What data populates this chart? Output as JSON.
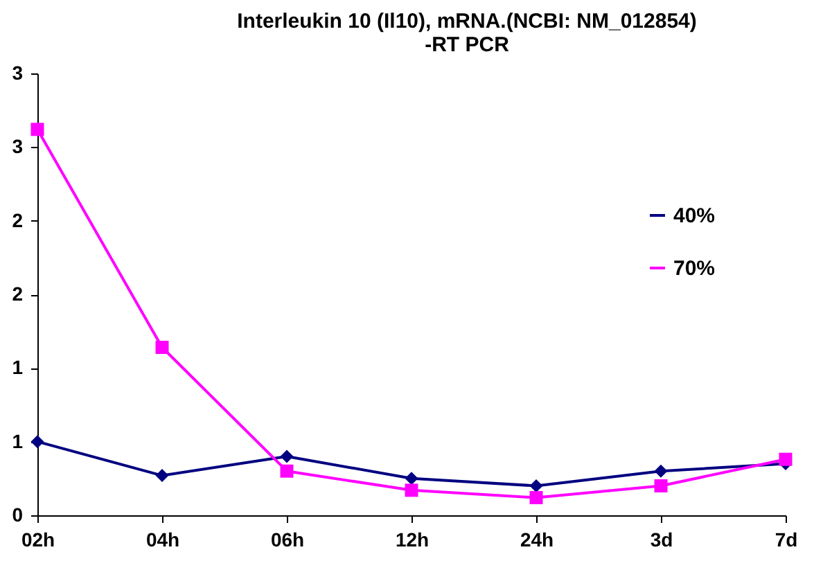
{
  "chart_data": {
    "type": "line",
    "title": "Interleukin 10 (Il10), mRNA.(NCBI: NM_012854)\n-RT PCR",
    "categories": [
      "02h",
      "04h",
      "06h",
      "12h",
      "24h",
      "3d",
      "7d"
    ],
    "series": [
      {
        "name": "40%",
        "color": "#000080",
        "marker": "diamond",
        "values": [
          0.5,
          0.27,
          0.4,
          0.25,
          0.2,
          0.3,
          0.35
        ]
      },
      {
        "name": "70%",
        "color": "#ff00ff",
        "marker": "square",
        "values": [
          2.62,
          1.14,
          0.3,
          0.17,
          0.12,
          0.2,
          0.38
        ]
      }
    ],
    "ylim": [
      0,
      3
    ],
    "yticks": [
      0,
      {
        "value": 0.5,
        "label": "1"
      },
      {
        "value": 1,
        "label": "1"
      },
      {
        "value": 1.5,
        "label": "2"
      },
      {
        "value": 2,
        "label": "2"
      },
      {
        "value": 2.5,
        "label": "3"
      },
      3
    ],
    "legend": "right",
    "grid": false,
    "line_style": "solid"
  }
}
